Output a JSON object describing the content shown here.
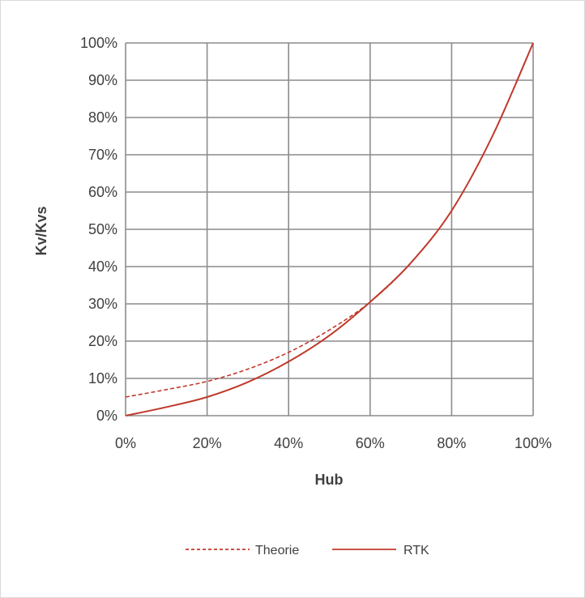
{
  "chart_data": {
    "type": "line",
    "title": "",
    "xlabel": "Hub",
    "ylabel": "Kv/Kvs",
    "xlim": [
      0,
      100
    ],
    "ylim": [
      0,
      100
    ],
    "x_ticks": [
      "0%",
      "20%",
      "40%",
      "60%",
      "80%",
      "100%"
    ],
    "y_ticks": [
      "0%",
      "10%",
      "20%",
      "30%",
      "40%",
      "50%",
      "60%",
      "70%",
      "80%",
      "90%",
      "100%"
    ],
    "grid": true,
    "legend_position": "bottom",
    "series": [
      {
        "name": "Theorie",
        "style": "dashed",
        "color": "#c0392b",
        "x": [
          0,
          10,
          20,
          30,
          40,
          50,
          60,
          70,
          80,
          90,
          100
        ],
        "y": [
          5,
          7,
          9.2,
          12.5,
          17,
          23,
          30.5,
          41,
          55,
          75,
          100
        ]
      },
      {
        "name": "RTK",
        "style": "solid",
        "color": "#c0392b",
        "x": [
          0,
          10,
          20,
          30,
          40,
          50,
          60,
          70,
          80,
          90,
          100
        ],
        "y": [
          0,
          2.3,
          5,
          9,
          14.5,
          21.5,
          30.5,
          41,
          55,
          75,
          100
        ]
      }
    ]
  }
}
